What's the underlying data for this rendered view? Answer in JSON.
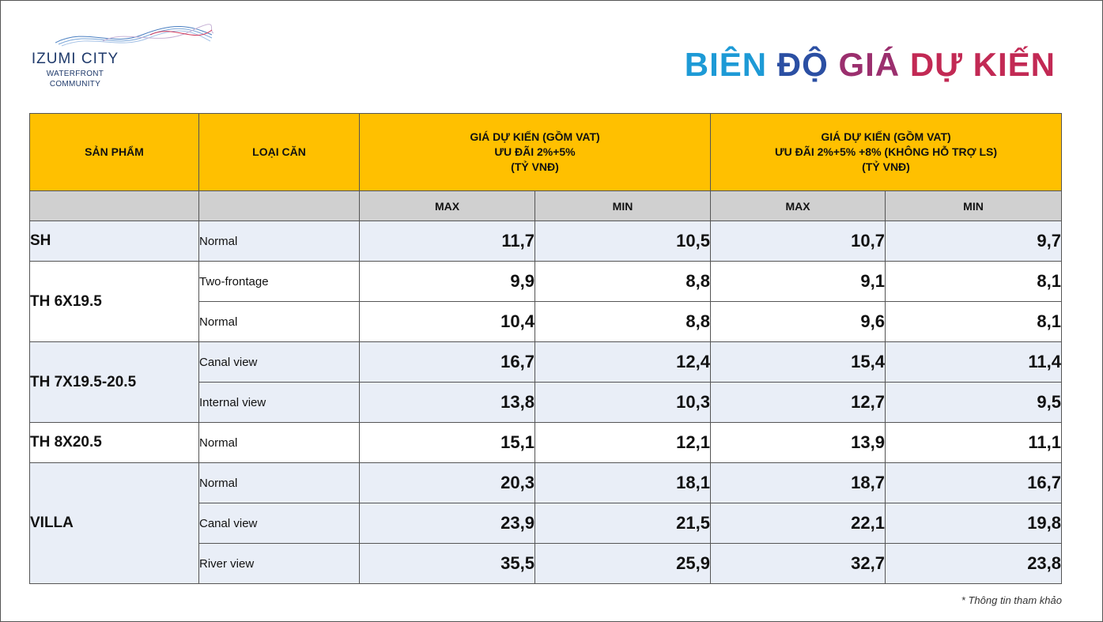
{
  "logo": {
    "name": "IZUMI CITY",
    "sub1": "WATERFRONT",
    "sub2": "COMMUNITY"
  },
  "title": {
    "part1": "BIÊN",
    "part2": "ĐỘ",
    "part3": "GIÁ",
    "part4": "DỰ KIẾN"
  },
  "colors": {
    "header_yellow": "#ffc000",
    "subheader_gray": "#d0d0d0",
    "row_shade": "#e9eef7",
    "title_blue": "#1d9ad6",
    "title_navy": "#2b4fa3",
    "title_magenta": "#9b2f6e",
    "title_red": "#c22954"
  },
  "table": {
    "col_product": "SẢN PHẨM",
    "col_type": "LOẠI CĂN",
    "group1": {
      "line1": "GIÁ DỰ KIẾN (GỒM VAT)",
      "line2": "ƯU ĐÃI 2%+5%",
      "line3": "(TỶ VNĐ)"
    },
    "group2": {
      "line1": "GIÁ DỰ KIẾN (GỒM VAT)",
      "line2": "ƯU ĐÃI  2%+5% +8% (KHÔNG HỖ TRỢ LS)",
      "line3": "(TỶ VNĐ)"
    },
    "sub": {
      "max1": "MAX",
      "min1": "MIN",
      "max2": "MAX",
      "min2": "MIN"
    },
    "rows": [
      {
        "product": "SH",
        "type": "Normal",
        "max1": "11,7",
        "min1": "10,5",
        "max2": "10,7",
        "min2": "9,7"
      },
      {
        "product": "TH 6X19.5",
        "type": "Two-frontage",
        "max1": "9,9",
        "min1": "8,8",
        "max2": "9,1",
        "min2": "8,1"
      },
      {
        "type": "Normal",
        "max1": "10,4",
        "min1": "8,8",
        "max2": "9,6",
        "min2": "8,1"
      },
      {
        "product": "TH 7X19.5-20.5",
        "type": "Canal view",
        "max1": "16,7",
        "min1": "12,4",
        "max2": "15,4",
        "min2": "11,4"
      },
      {
        "type": "Internal view",
        "max1": "13,8",
        "min1": "10,3",
        "max2": "12,7",
        "min2": "9,5"
      },
      {
        "product": "TH  8X20.5",
        "type": "Normal",
        "max1": "15,1",
        "min1": "12,1",
        "max2": "13,9",
        "min2": "11,1"
      },
      {
        "product": "VILLA",
        "type": "Normal",
        "max1": "20,3",
        "min1": "18,1",
        "max2": "18,7",
        "min2": "16,7"
      },
      {
        "type": "Canal view",
        "max1": "23,9",
        "min1": "21,5",
        "max2": "22,1",
        "min2": "19,8"
      },
      {
        "type": "River view",
        "max1": "35,5",
        "min1": "25,9",
        "max2": "32,7",
        "min2": "23,8"
      }
    ]
  },
  "note": "* Thông tin tham khảo"
}
